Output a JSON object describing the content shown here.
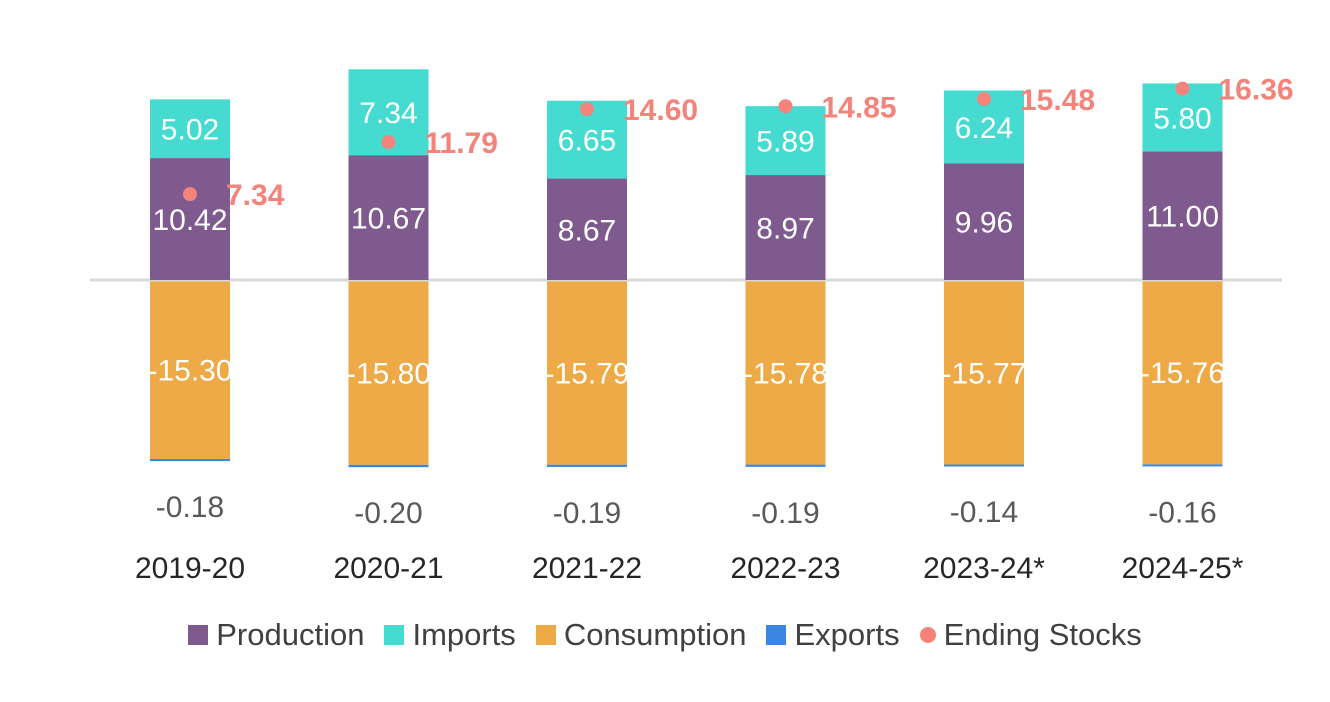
{
  "chart_data": {
    "type": "bar",
    "stacked": true,
    "categories": [
      "2019-20",
      "2020-21",
      "2021-22",
      "2022-23",
      "2023-24*",
      "2024-25*"
    ],
    "series": [
      {
        "name": "Production",
        "color": "#7f5a8e",
        "values": [
          10.42,
          10.67,
          8.67,
          8.97,
          9.96,
          11.0
        ]
      },
      {
        "name": "Imports",
        "color": "#45dbd1",
        "values": [
          5.02,
          7.34,
          6.65,
          5.89,
          6.24,
          5.8
        ]
      },
      {
        "name": "Consumption",
        "color": "#eeaa46",
        "values": [
          -15.3,
          -15.8,
          -15.79,
          -15.78,
          -15.77,
          -15.76
        ]
      },
      {
        "name": "Exports",
        "color": "#3a86e0",
        "values": [
          -0.18,
          -0.2,
          -0.19,
          -0.19,
          -0.14,
          -0.16
        ]
      }
    ],
    "ending_stocks": {
      "name": "Ending Stocks",
      "type": "scatter",
      "color": "#f4847b",
      "values": [
        7.34,
        11.79,
        14.6,
        14.85,
        15.48,
        16.36
      ]
    },
    "labels": {
      "production": [
        "10.42",
        "10.67",
        "8.67",
        "8.97",
        "9.96",
        "11.00"
      ],
      "imports": [
        "5.02",
        "7.34",
        "6.65",
        "5.89",
        "6.24",
        "5.80"
      ],
      "consumption": [
        "-15.30",
        "-15.80",
        "-15.79",
        "-15.78",
        "-15.77",
        "-15.76"
      ],
      "exports": [
        "-0.18",
        "-0.20",
        "-0.19",
        "-0.19",
        "-0.14",
        "-0.16"
      ],
      "ending_stocks": [
        "7.34",
        "11.79",
        "14.60",
        "14.85",
        "15.48",
        "16.36"
      ]
    },
    "ylim": [
      -16.5,
      18
    ],
    "legend": {
      "position": "bottom",
      "items": [
        {
          "label": "Production",
          "color": "#7f5a8e",
          "marker": "square"
        },
        {
          "label": "Imports",
          "color": "#45dbd1",
          "marker": "square"
        },
        {
          "label": "Consumption",
          "color": "#eeaa46",
          "marker": "square"
        },
        {
          "label": "Exports",
          "color": "#3a86e0",
          "marker": "square"
        },
        {
          "label": "Ending Stocks",
          "color": "#f4847b",
          "marker": "dot"
        }
      ]
    },
    "title": "",
    "xlabel": "",
    "ylabel": "",
    "grid": false
  }
}
